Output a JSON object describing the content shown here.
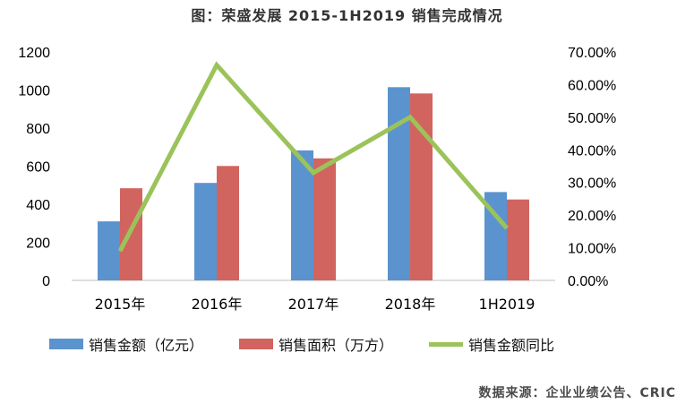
{
  "chart_data": {
    "type": "bar",
    "title": "图：荣盛发展 2015-1H2019 销售完成情况",
    "categories": [
      "2015年",
      "2016年",
      "2017年",
      "2018年",
      "1H2019"
    ],
    "series": [
      {
        "name": "销售金额（亿元）",
        "kind": "bar",
        "axis": "left",
        "color": "#5B93CF",
        "values": [
          310,
          512,
          683,
          1015,
          464
        ]
      },
      {
        "name": "销售面积（万方）",
        "kind": "bar",
        "axis": "left",
        "color": "#D2645F",
        "values": [
          484,
          601,
          641,
          982,
          425
        ]
      },
      {
        "name": "销售金额同比",
        "kind": "line",
        "axis": "right",
        "color": "#9BC35A",
        "values": [
          0.09,
          0.66,
          0.33,
          0.5,
          0.16
        ]
      }
    ],
    "y_left": {
      "lim": [
        0,
        1200
      ],
      "ticks": [
        "0",
        "200",
        "400",
        "600",
        "800",
        "1000",
        "1200"
      ]
    },
    "y_right": {
      "lim": [
        0,
        0.7
      ],
      "ticks": [
        "0.00%",
        "10.00%",
        "20.00%",
        "30.00%",
        "40.00%",
        "50.00%",
        "60.00%",
        "70.00%"
      ]
    },
    "grid": false,
    "legend_position": "bottom",
    "source": "数据来源：企业业绩公告、CRIC"
  }
}
